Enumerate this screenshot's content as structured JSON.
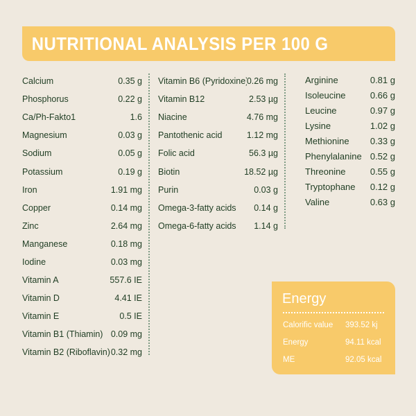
{
  "header": {
    "title": "NUTRITIONAL ANALYSIS PER 100 G"
  },
  "columns": [
    [
      {
        "name": "Calcium",
        "value": "0.35 g"
      },
      {
        "name": "Phosphorus",
        "value": "0.22 g"
      },
      {
        "name": "Ca/Ph-Fakto1",
        "value": "1.6"
      },
      {
        "name": "Magnesium",
        "value": "0.03 g"
      },
      {
        "name": "Sodium",
        "value": "0.05 g"
      },
      {
        "name": "Potassium",
        "value": "0.19 g"
      },
      {
        "name": "Iron",
        "value": "1.91 mg"
      },
      {
        "name": "Copper",
        "value": "0.14 mg"
      },
      {
        "name": "Zinc",
        "value": "2.64 mg"
      },
      {
        "name": "Manganese",
        "value": "0.18 mg"
      },
      {
        "name": "Iodine",
        "value": "0.03 mg"
      },
      {
        "name": "Vitamin A",
        "value": "557.6 IE"
      },
      {
        "name": "Vitamin D",
        "value": "4.41 IE"
      },
      {
        "name": "Vitamin E",
        "value": "0.5 IE"
      },
      {
        "name": "Vitamin B1 (Thiamin)",
        "value": "0.09 mg"
      },
      {
        "name": "Vitamin B2 (Riboflavin)",
        "value": "0.32 mg"
      }
    ],
    [
      {
        "name": "Vitamin B6 (Pyridoxine)",
        "value": "0.26 mg"
      },
      {
        "name": "Vitamin B12",
        "value": "2.53 µg"
      },
      {
        "name": "Niacine",
        "value": "4.76 mg"
      },
      {
        "name": "Pantothenic acid",
        "value": "1.12 mg"
      },
      {
        "name": "Folic acid",
        "value": "56.3 µg"
      },
      {
        "name": "Biotin",
        "value": "18.52 µg"
      },
      {
        "name": "Purin",
        "value": "0.03 g"
      },
      {
        "name": "Omega-3-fatty acids",
        "value": "0.14 g"
      },
      {
        "name": "Omega-6-fatty acids",
        "value": "1.14 g"
      }
    ],
    [
      {
        "name": "Arginine",
        "value": "0.81 g"
      },
      {
        "name": "Isoleucine",
        "value": "0.66 g"
      },
      {
        "name": "Leucine",
        "value": "0.97 g"
      },
      {
        "name": "Lysine",
        "value": "1.02 g"
      },
      {
        "name": "Methionine",
        "value": "0.33 g"
      },
      {
        "name": "Phenylalanine",
        "value": "0.52 g"
      },
      {
        "name": "Threonine",
        "value": "0.55 g"
      },
      {
        "name": "Tryptophane",
        "value": "0.12 g"
      },
      {
        "name": "Valine",
        "value": "0.63 g"
      }
    ]
  ],
  "energy": {
    "title": "Energy",
    "rows": [
      {
        "name": "Calorific value",
        "value": "393.52  kj"
      },
      {
        "name": "Energy",
        "value": "94.11 kcal"
      },
      {
        "name": "ME",
        "value": "92.05 kcal"
      }
    ]
  },
  "colors": {
    "background": "#efe9df",
    "accent": "#f8ca6a",
    "text": "#1f3d23",
    "divider": "#7e9b84"
  }
}
